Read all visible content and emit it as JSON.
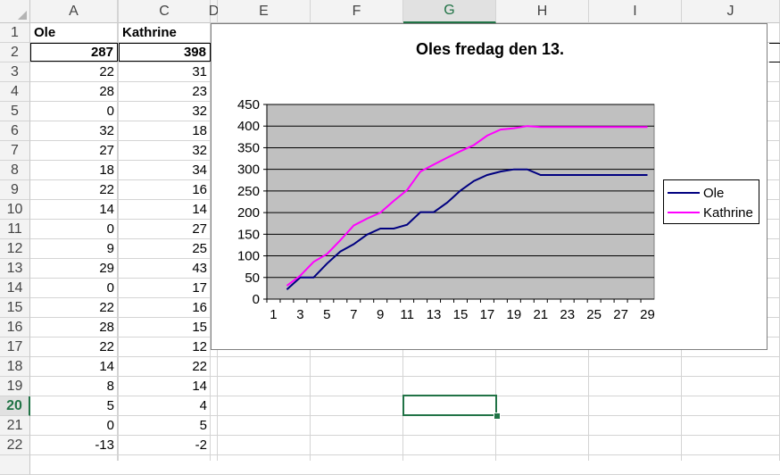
{
  "sheet": {
    "columns": [
      "A",
      "I",
      "C",
      "D",
      "E",
      "F",
      "G",
      "H",
      "I",
      "J"
    ],
    "selected_column": "G",
    "selected_row": "20",
    "rows": [
      {
        "n": "1",
        "a": "Ole",
        "c": "Kathrine"
      },
      {
        "n": "2",
        "a": "287",
        "c": "398"
      },
      {
        "n": "3",
        "a": "22",
        "c": "31"
      },
      {
        "n": "4",
        "a": "28",
        "c": "23"
      },
      {
        "n": "5",
        "a": "0",
        "c": "32"
      },
      {
        "n": "6",
        "a": "32",
        "c": "18"
      },
      {
        "n": "7",
        "a": "27",
        "c": "32"
      },
      {
        "n": "8",
        "a": "18",
        "c": "34"
      },
      {
        "n": "9",
        "a": "22",
        "c": "16"
      },
      {
        "n": "10",
        "a": "14",
        "c": "14"
      },
      {
        "n": "11",
        "a": "0",
        "c": "27"
      },
      {
        "n": "12",
        "a": "9",
        "c": "25"
      },
      {
        "n": "13",
        "a": "29",
        "c": "43"
      },
      {
        "n": "14",
        "a": "0",
        "c": "17"
      },
      {
        "n": "15",
        "a": "22",
        "c": "16"
      },
      {
        "n": "16",
        "a": "28",
        "c": "15"
      },
      {
        "n": "17",
        "a": "22",
        "c": "12"
      },
      {
        "n": "18",
        "a": "14",
        "c": "22"
      },
      {
        "n": "19",
        "a": "8",
        "c": "14"
      },
      {
        "n": "20",
        "a": "5",
        "c": "4"
      },
      {
        "n": "21",
        "a": "0",
        "c": "5"
      },
      {
        "n": "22",
        "a": "-13",
        "c": "-2"
      }
    ]
  },
  "chart_data": {
    "type": "line",
    "title": "Oles fredag den 13.",
    "xlabel": "",
    "ylabel": "",
    "x": [
      2,
      3,
      4,
      5,
      6,
      7,
      8,
      9,
      10,
      11,
      12,
      13,
      14,
      15,
      16,
      17,
      18,
      19,
      20,
      21,
      22,
      23,
      24,
      25,
      26,
      27,
      28,
      29
    ],
    "x_ticks": [
      "1",
      "3",
      "5",
      "7",
      "9",
      "11",
      "13",
      "15",
      "17",
      "19",
      "21",
      "23",
      "25",
      "27",
      "29"
    ],
    "y_ticks": [
      "0",
      "50",
      "100",
      "150",
      "200",
      "250",
      "300",
      "350",
      "400",
      "450"
    ],
    "ylim": [
      0,
      450
    ],
    "xlim": [
      1,
      29
    ],
    "grid": true,
    "plot_background": "#c0c0c0",
    "legend_position": "right",
    "series": [
      {
        "name": "Ole",
        "color": "#000080",
        "values": [
          22,
          50,
          50,
          82,
          110,
          127,
          149,
          163,
          163,
          172,
          201,
          201,
          223,
          251,
          273,
          287,
          295,
          300,
          300,
          287,
          287,
          287,
          287,
          287,
          287,
          287,
          287,
          287
        ]
      },
      {
        "name": "Kathrine",
        "color": "#ff00ff",
        "values": [
          31,
          54,
          86,
          104,
          136,
          170,
          186,
          200,
          227,
          252,
          295,
          311,
          327,
          342,
          356,
          378,
          392,
          395,
          400,
          398,
          398,
          398,
          398,
          398,
          398,
          398,
          398,
          398
        ]
      }
    ]
  }
}
